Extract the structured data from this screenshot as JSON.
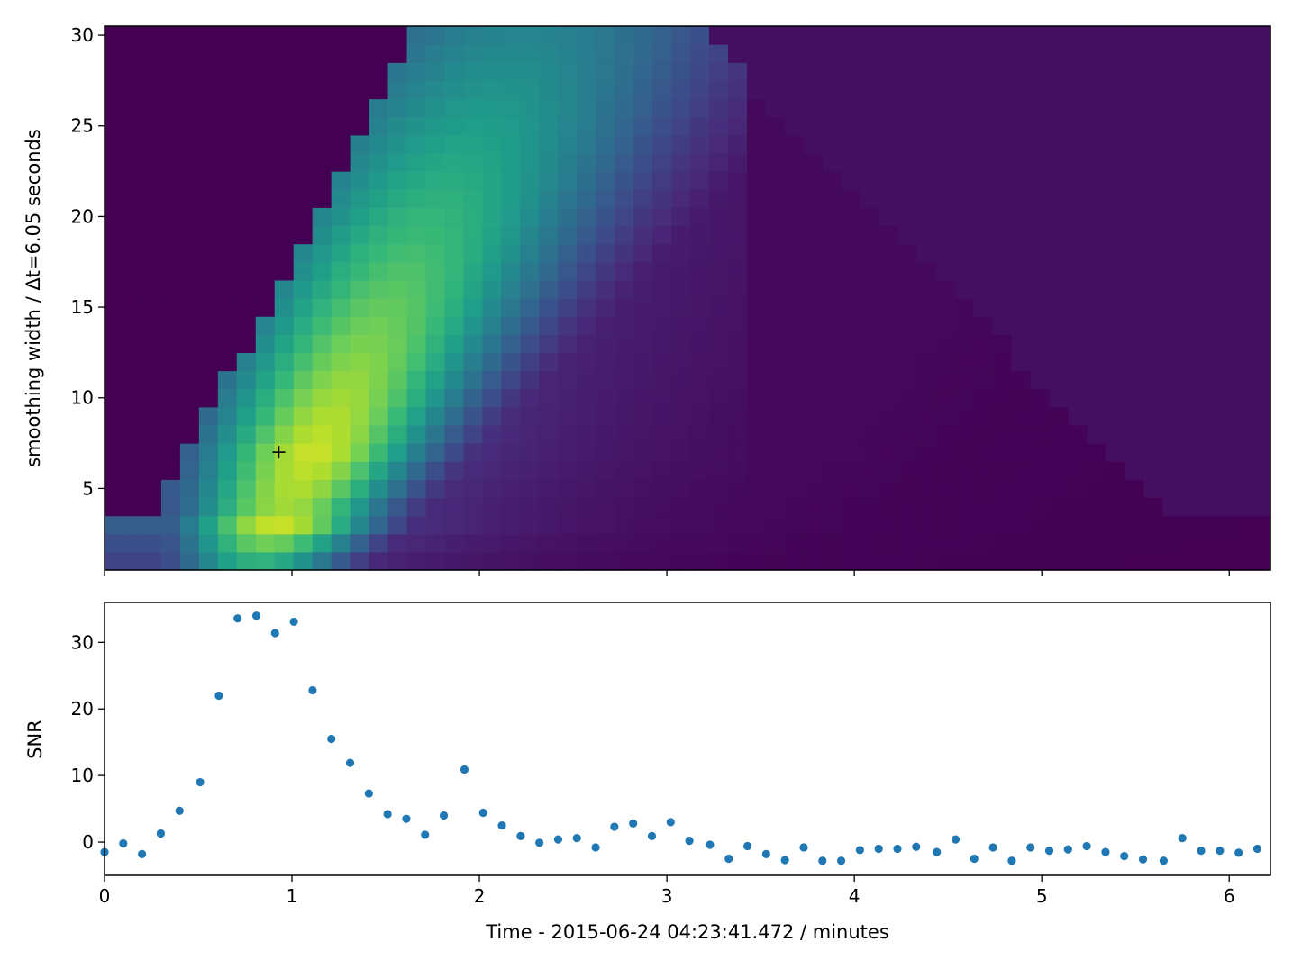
{
  "chart_data": [
    {
      "type": "heatmap",
      "ylabel": "smoothing width / Δt=6.05 seconds",
      "xlim": [
        0,
        6.22
      ],
      "ylim": [
        0.5,
        30.5
      ],
      "x_ticks": [
        0,
        1,
        2,
        3,
        4,
        5,
        6
      ],
      "x_tick_labels_visible": false,
      "y_ticks": [
        5,
        10,
        15,
        20,
        25,
        30
      ],
      "y_tick_labels": [
        "5",
        "10",
        "15",
        "20",
        "25",
        "30"
      ],
      "x_bin_width_minutes": 0.1008,
      "n_time_bins": 62,
      "n_width_bins": 30,
      "colormap": "viridis",
      "value_range": [
        -3,
        34
      ],
      "values_note": "SNR per (time, smoothing width) cell; low-SNR triangular wedges at top-left (before arrival) and top-right (boundary region)",
      "peak_marker": {
        "x": 0.93,
        "y": 7,
        "symbol": "+"
      },
      "colors": [
        "#440154",
        "#482878",
        "#3e4989",
        "#31688e",
        "#26828e",
        "#1f9e89",
        "#35b779",
        "#6ece58",
        "#b5de2b",
        "#fde725"
      ]
    },
    {
      "type": "scatter",
      "xlabel": "Time - 2015-06-24 04:23:41.472 / minutes",
      "ylabel": "SNR",
      "xlim": [
        0,
        6.22
      ],
      "ylim": [
        -5,
        36
      ],
      "x_ticks": [
        0,
        1,
        2,
        3,
        4,
        5,
        6
      ],
      "x_tick_labels": [
        "0",
        "1",
        "2",
        "3",
        "4",
        "5",
        "6"
      ],
      "y_ticks": [
        0,
        10,
        20,
        30
      ],
      "y_tick_labels": [
        "0",
        "10",
        "20",
        "30"
      ],
      "marker_color": "#1f77b4",
      "x": [
        0.0,
        0.1,
        0.2,
        0.3,
        0.4,
        0.51,
        0.61,
        0.71,
        0.81,
        0.91,
        1.01,
        1.11,
        1.21,
        1.31,
        1.41,
        1.51,
        1.61,
        1.71,
        1.81,
        1.92,
        2.02,
        2.12,
        2.22,
        2.32,
        2.42,
        2.52,
        2.62,
        2.72,
        2.82,
        2.92,
        3.02,
        3.12,
        3.23,
        3.33,
        3.43,
        3.53,
        3.63,
        3.73,
        3.83,
        3.93,
        4.03,
        4.13,
        4.23,
        4.33,
        4.44,
        4.54,
        4.64,
        4.74,
        4.84,
        4.94,
        5.04,
        5.14,
        5.24,
        5.34,
        5.44,
        5.54,
        5.65,
        5.75,
        5.85,
        5.95,
        6.05,
        6.15
      ],
      "y": [
        -1.5,
        -0.2,
        -1.8,
        1.3,
        4.7,
        9.0,
        22.0,
        33.6,
        34.0,
        31.4,
        33.1,
        22.8,
        15.5,
        11.9,
        7.3,
        4.2,
        3.5,
        1.1,
        4.0,
        10.9,
        4.4,
        2.5,
        0.9,
        -0.1,
        0.4,
        0.6,
        -0.8,
        2.3,
        2.8,
        0.9,
        3.0,
        0.2,
        -0.4,
        -2.5,
        -0.6,
        -1.8,
        -2.7,
        -0.8,
        -2.8,
        -2.8,
        -1.2,
        -1.0,
        -1.0,
        -0.7,
        -1.5,
        0.4,
        -2.5,
        -0.8,
        -2.8,
        -0.8,
        -1.3,
        -1.1,
        -0.6,
        -1.5,
        -2.1,
        -2.6,
        -2.8,
        0.6,
        -1.3,
        -1.3,
        -1.6,
        -1.0
      ]
    }
  ]
}
